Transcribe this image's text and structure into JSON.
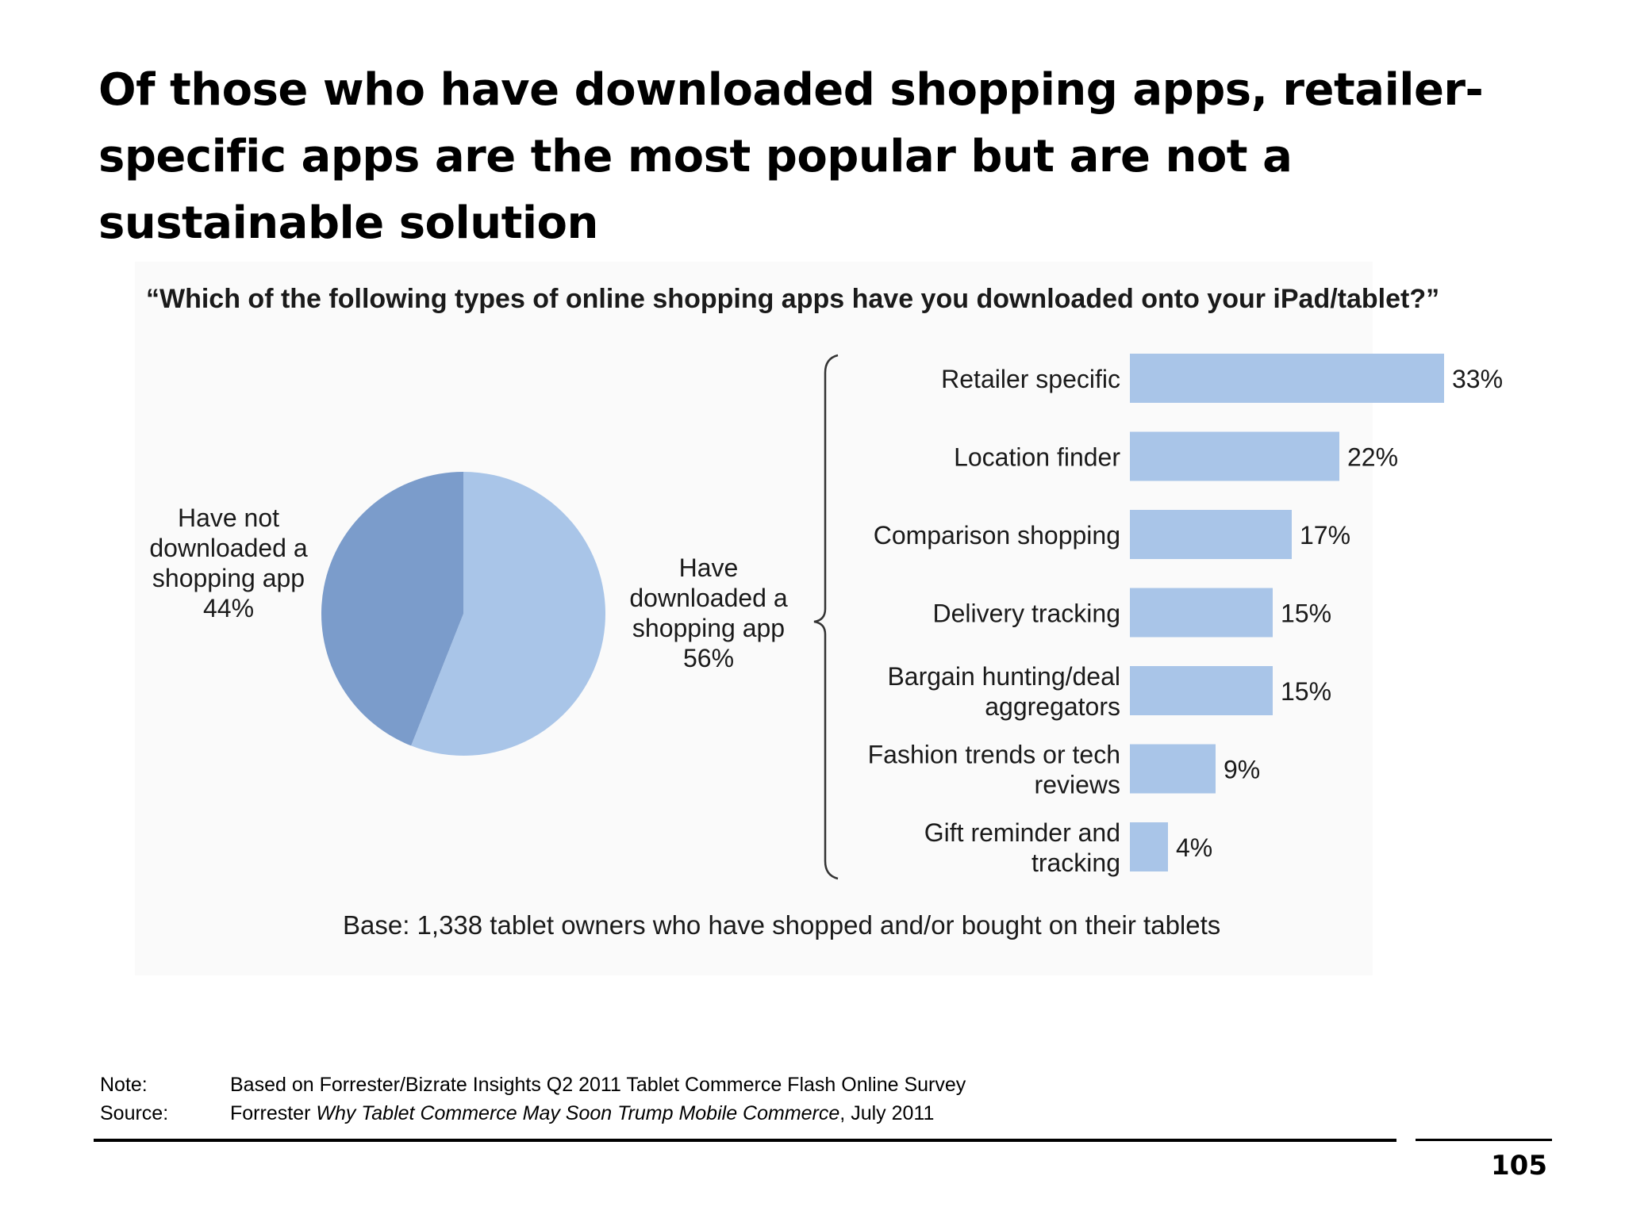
{
  "title": "Of those who have downloaded shopping apps, retailer-specific apps are the most popular but are not a sustainable solution",
  "colors": {
    "pie_light": "#a9c5e8",
    "pie_dark": "#7b9ccb",
    "bar": "#a9c5e8",
    "text": "#1a1a1a"
  },
  "chart_data": [
    {
      "type": "pie",
      "title": "“Which of the following types of online shopping apps have you downloaded onto your iPad/tablet?”",
      "slices": [
        {
          "label_lines": [
            "Have",
            "downloaded a",
            "shopping app"
          ],
          "value_label": "56%",
          "value": 56
        },
        {
          "label_lines": [
            "Have not",
            "downloaded a",
            "shopping app"
          ],
          "value_label": "44%",
          "value": 44
        }
      ]
    },
    {
      "type": "bar",
      "orientation": "horizontal",
      "categories": [
        [
          "Retailer specific"
        ],
        [
          "Location finder"
        ],
        [
          "Comparison shopping"
        ],
        [
          "Delivery tracking"
        ],
        [
          "Bargain hunting/deal",
          "aggregators"
        ],
        [
          "Fashion trends or tech",
          "reviews"
        ],
        [
          "Gift reminder and",
          "tracking"
        ]
      ],
      "values": [
        33,
        22,
        17,
        15,
        15,
        9,
        4
      ],
      "value_labels": [
        "33%",
        "22%",
        "17%",
        "15%",
        "15%",
        "9%",
        "4%"
      ]
    }
  ],
  "base_note": "Base: 1,338 tablet owners who have shopped and/or bought on their tablets",
  "footnotes": {
    "note_label": "Note:",
    "note_text": "Based on Forrester/Bizrate Insights Q2 2011 Tablet Commerce Flash Online Survey",
    "source_label": "Source:",
    "source_prefix": "Forrester ",
    "source_italic": "Why Tablet Commerce May Soon Trump Mobile Commerce",
    "source_suffix": ", July 2011"
  },
  "page_number": "105"
}
